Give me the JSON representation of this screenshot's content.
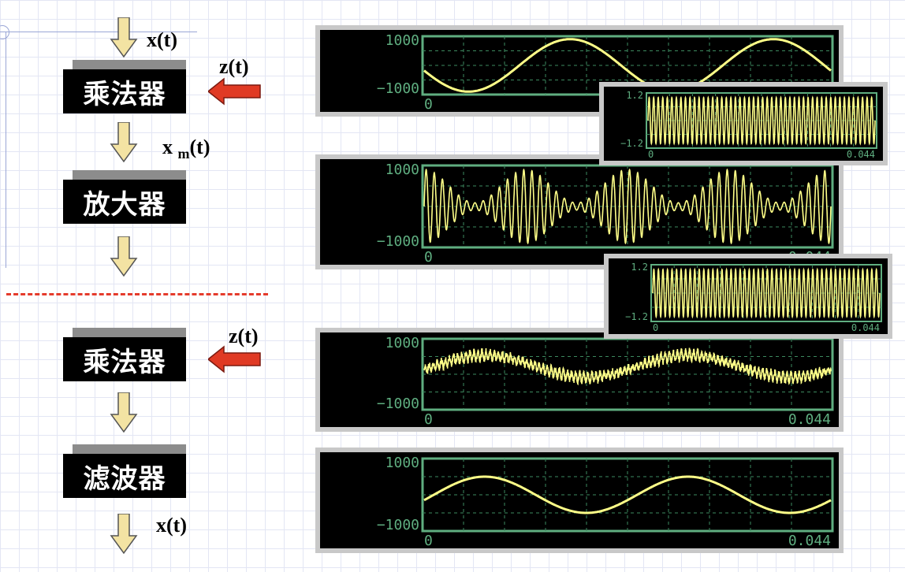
{
  "blocks": {
    "multiplier1": "乘法器",
    "amplifier": "放大器",
    "multiplier2": "乘法器",
    "filter": "滤波器"
  },
  "signals": {
    "input": "x(t)",
    "carrier1": "z(t)",
    "modulated_base": "x",
    "modulated_sub": "m",
    "modulated_tail": "(t)",
    "carrier2": "z(t)",
    "output": "x(t)"
  },
  "colors": {
    "trace": "#ffff88",
    "grid": "#5fae80",
    "separator": "#e53b2c",
    "arrow": "#e03a24"
  },
  "scopes": [
    {
      "id": "scope-input",
      "y_top": "1000",
      "y_bottom": "−1000",
      "x_start": "0",
      "x_end": ""
    },
    {
      "id": "scope-carrier1",
      "y_top": "1.2",
      "y_bottom": "−1.2",
      "x_start": "0",
      "x_end": "0.044"
    },
    {
      "id": "scope-modulated",
      "y_top": "1000",
      "y_bottom": "−1000",
      "x_start": "0",
      "x_end": "0.044"
    },
    {
      "id": "scope-carrier2",
      "y_top": "1.2",
      "y_bottom": "−1.2",
      "x_start": "0",
      "x_end": "0.044"
    },
    {
      "id": "scope-demod",
      "y_top": "1000",
      "y_bottom": "−1000",
      "x_start": "0",
      "x_end": "0.044"
    },
    {
      "id": "scope-output",
      "y_top": "1000",
      "y_bottom": "−1000",
      "x_start": "0",
      "x_end": "0.044"
    }
  ],
  "chart_data": [
    {
      "type": "line",
      "name": "",
      "x_range": [
        0,
        0.044
      ],
      "y_range": [
        -1000,
        1000
      ],
      "signal": "sinusoid",
      "cycles": 2,
      "amplitude": 900
    },
    {
      "type": "line",
      "name": "",
      "x_range": [
        0,
        0.044
      ],
      "y_range": [
        -1.2,
        1.2
      ],
      "signal": "carrier",
      "cycles": 50,
      "amplitude": 1
    },
    {
      "type": "line",
      "name": "",
      "x_range": [
        0,
        0.044
      ],
      "y_range": [
        -1000,
        1000
      ],
      "signal": "modulated",
      "cycles": 50,
      "amplitude": 900
    },
    {
      "type": "line",
      "name": "",
      "x_range": [
        0,
        0.044
      ],
      "y_range": [
        -1.2,
        1.2
      ],
      "signal": "carrier",
      "cycles": 50,
      "amplitude": 1
    },
    {
      "type": "line",
      "name": "",
      "x_range": [
        0,
        0.044
      ],
      "y_range": [
        -1000,
        1000
      ],
      "signal": "demodulated",
      "cycles": 2,
      "amplitude": 900
    },
    {
      "type": "line",
      "name": "",
      "x_range": [
        0,
        0.044
      ],
      "y_range": [
        -1000,
        1000
      ],
      "signal": "filtered",
      "cycles": 2,
      "amplitude": 500
    }
  ]
}
